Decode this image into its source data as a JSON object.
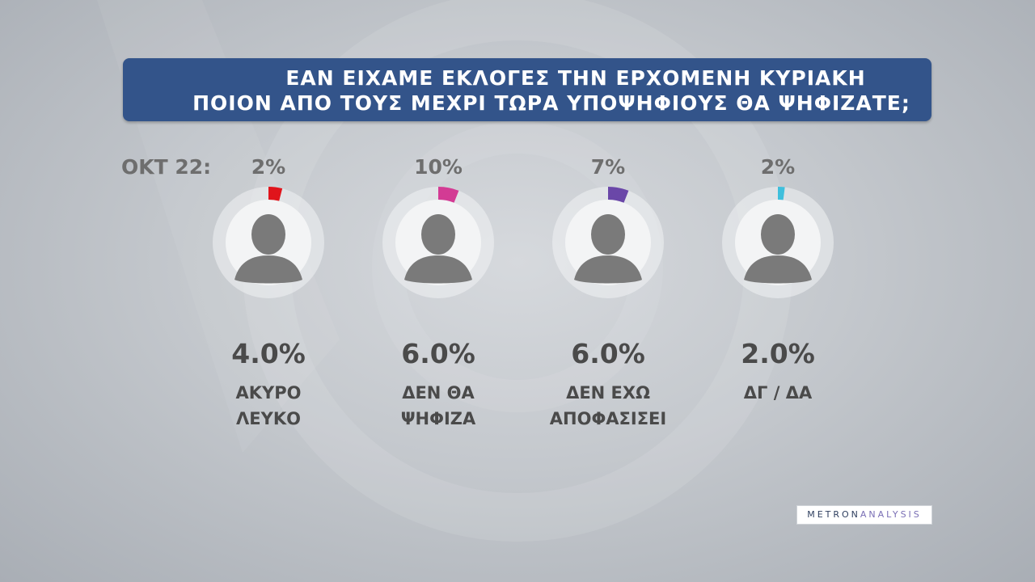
{
  "title": {
    "line1": "ΕΑΝ ΕΙΧΑΜΕ ΕΚΛΟΓΕΣ ΤΗΝ ΕΡΧΟΜΕΝΗ ΚΥΡΙΑΚΗ",
    "line2": "ΠΟΙΟΝ ΑΠΟ ΤΟΥΣ ΜΕΧΡΙ ΤΩΡΑ ΥΠΟΨΗΦΙΟΥΣ ΘΑ ΨΗΦΙΖΑΤΕ;"
  },
  "prev_label": "ΟΚΤ 22:",
  "logo": {
    "part1": "METRON",
    "part2": "ANALYSIS"
  },
  "chart_data": {
    "type": "bar",
    "categories": [
      "ΑΚΥΡΟ ΛΕΥΚΟ",
      "ΔΕΝ ΘΑ ΨΗΦΙΖΑ",
      "ΔΕΝ ΕΧΩ ΑΠΟΦΑΣΙΣΕΙ",
      "ΔΓ / ΔΑ"
    ],
    "values": [
      4.0,
      6.0,
      6.0,
      2.0
    ],
    "unit": "%",
    "series": [
      {
        "name": "ΟΚΤ 22",
        "values": [
          2,
          10,
          7,
          2
        ]
      }
    ]
  },
  "items": [
    {
      "value_text": "4.0%",
      "prev_text": "2%",
      "label_lines": [
        "ΑΚΥΡΟ",
        "ΛΕΥΚΟ"
      ],
      "value": 4.0,
      "color": "#e0141b"
    },
    {
      "value_text": "6.0%",
      "prev_text": "10%",
      "label_lines": [
        "ΔΕΝ ΘΑ",
        "ΨΗΦΙΖΑ"
      ],
      "value": 6.0,
      "color": "#d33b94"
    },
    {
      "value_text": "6.0%",
      "prev_text": "7%",
      "label_lines": [
        "ΔΕΝ ΕΧΩ",
        "ΑΠΟΦΑΣΙΣΕΙ"
      ],
      "value": 6.0,
      "color": "#6a47a8"
    },
    {
      "value_text": "2.0%",
      "prev_text": "2%",
      "label_lines": [
        "ΔΓ / ΔΑ",
        ""
      ],
      "value": 2.0,
      "color": "#3fbfdc"
    }
  ]
}
